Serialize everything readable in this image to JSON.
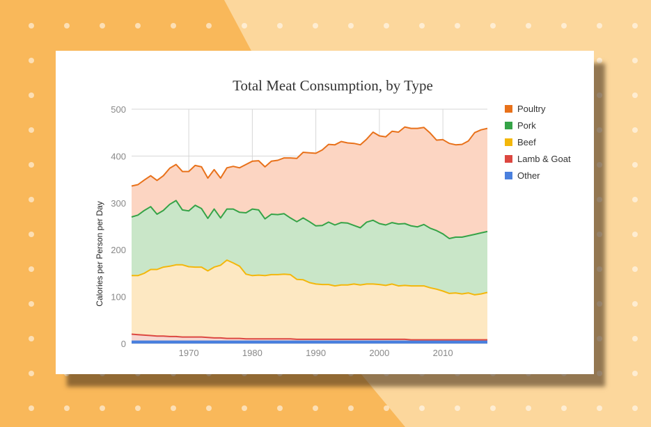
{
  "colors": {
    "background": "#f9b85a",
    "background_light": "#fcd79c",
    "card": "#ffffff",
    "grid": "#d6d6d6",
    "axis_text": "#888888"
  },
  "chart_data": {
    "type": "area",
    "stacked": true,
    "title": "Total Meat Consumption, by Type",
    "xlabel": "",
    "ylabel": "Calories per Person per Day",
    "xlim": [
      1961,
      2017
    ],
    "ylim": [
      0,
      500
    ],
    "x_ticks": [
      1970,
      1980,
      1990,
      2000,
      2010
    ],
    "y_ticks": [
      0,
      100,
      200,
      300,
      400,
      500
    ],
    "grid": true,
    "legend_position": "right",
    "x": [
      1961,
      1962,
      1963,
      1964,
      1965,
      1966,
      1967,
      1968,
      1969,
      1970,
      1971,
      1972,
      1973,
      1974,
      1975,
      1976,
      1977,
      1978,
      1979,
      1980,
      1981,
      1982,
      1983,
      1984,
      1985,
      1986,
      1987,
      1988,
      1989,
      1990,
      1991,
      1992,
      1993,
      1994,
      1995,
      1996,
      1997,
      1998,
      1999,
      2000,
      2001,
      2002,
      2003,
      2004,
      2005,
      2006,
      2007,
      2008,
      2009,
      2010,
      2011,
      2012,
      2013,
      2014,
      2015,
      2016,
      2017
    ],
    "series_order_bottom_to_top": [
      "Other",
      "Lamb & Goat",
      "Beef",
      "Pork",
      "Poultry"
    ],
    "series": [
      {
        "name": "Poultry",
        "color": "#e8711a",
        "fill": "#fcd5c2",
        "cumulative_top": [
          336,
          339,
          349,
          358,
          348,
          358,
          374,
          382,
          367,
          367,
          380,
          377,
          353,
          371,
          353,
          375,
          378,
          375,
          382,
          389,
          390,
          377,
          389,
          391,
          396,
          396,
          395,
          408,
          407,
          406,
          413,
          425,
          424,
          431,
          428,
          427,
          424,
          436,
          451,
          443,
          441,
          453,
          451,
          462,
          459,
          459,
          461,
          449,
          434,
          435,
          427,
          424,
          425,
          432,
          450,
          456,
          459
        ]
      },
      {
        "name": "Pork",
        "color": "#35a347",
        "fill": "#c9e6c8",
        "cumulative_top": [
          270,
          274,
          284,
          292,
          276,
          284,
          297,
          305,
          285,
          283,
          295,
          288,
          267,
          287,
          268,
          287,
          287,
          280,
          279,
          287,
          285,
          266,
          276,
          275,
          277,
          268,
          260,
          268,
          260,
          251,
          252,
          259,
          253,
          258,
          257,
          252,
          247,
          259,
          263,
          256,
          253,
          258,
          255,
          256,
          251,
          249,
          254,
          246,
          241,
          234,
          224,
          227,
          227,
          230,
          233,
          236,
          239
        ]
      },
      {
        "name": "Beef",
        "color": "#f3b70b",
        "fill": "#fde8c2",
        "cumulative_top": [
          145,
          145,
          150,
          158,
          158,
          163,
          165,
          168,
          168,
          164,
          163,
          163,
          155,
          163,
          167,
          178,
          172,
          165,
          148,
          145,
          146,
          145,
          147,
          147,
          148,
          147,
          137,
          136,
          130,
          127,
          126,
          126,
          123,
          125,
          125,
          127,
          125,
          127,
          127,
          126,
          124,
          127,
          123,
          124,
          123,
          123,
          123,
          119,
          116,
          112,
          107,
          108,
          106,
          108,
          104,
          106,
          109
        ]
      },
      {
        "name": "Lamb & Goat",
        "color": "#dc4740",
        "fill": "#f6d7d0",
        "cumulative_top": [
          20,
          19,
          18,
          17,
          16,
          16,
          15,
          15,
          14,
          14,
          14,
          14,
          13,
          12,
          12,
          11,
          11,
          11,
          10,
          10,
          10,
          10,
          10,
          10,
          10,
          10,
          9,
          9,
          9,
          9,
          9,
          9,
          9,
          9,
          9,
          9,
          9,
          9,
          9,
          9,
          9,
          9,
          9,
          9,
          8,
          8,
          8,
          8,
          8,
          8,
          8,
          8,
          8,
          8,
          8,
          8,
          8
        ]
      },
      {
        "name": "Other",
        "color": "#4a80de",
        "fill": "#4a80de",
        "cumulative_top": [
          5,
          5,
          5,
          5,
          5,
          5,
          5,
          5,
          5,
          5,
          5,
          5,
          5,
          5,
          5,
          5,
          5,
          5,
          5,
          5,
          5,
          5,
          5,
          5,
          5,
          5,
          5,
          5,
          5,
          5,
          5,
          5,
          5,
          5,
          5,
          5,
          5,
          5,
          5,
          5,
          5,
          5,
          5,
          5,
          5,
          5,
          5,
          5,
          5,
          5,
          5,
          5,
          5,
          5,
          5,
          5,
          5
        ]
      }
    ]
  }
}
